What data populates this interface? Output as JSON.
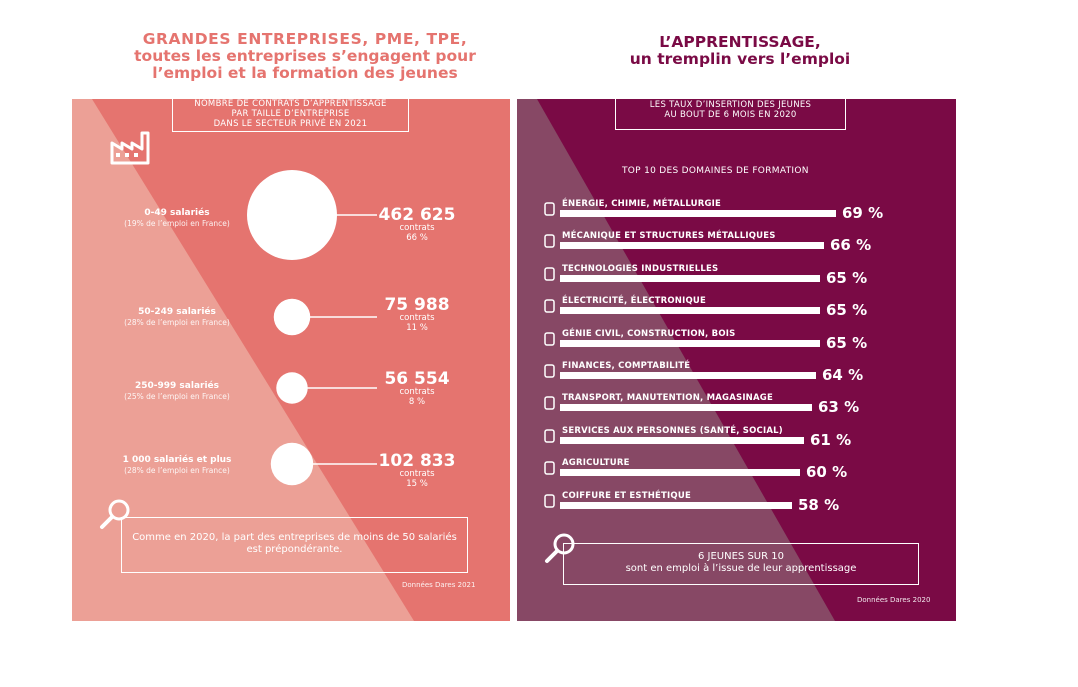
{
  "left": {
    "title_lines": [
      "GRANDES ENTREPRISES, PME, TPE,",
      "toutes les entreprises s’engagent pour",
      "l’emploi et la formation des jeunes"
    ],
    "header_lines": [
      "NOMBRE DE CONTRATS D’APPRENTISSAGE",
      "PAR TAILLE D’ENTREPRISE",
      "DANS LE SECTEUR PRIVÉ EN 2021"
    ],
    "note_lines": [
      "Comme en 2020, la part des entreprises de moins de 50 salariés",
      "est prépondérante."
    ],
    "source": "Données Dares 2021",
    "unit_label": "contrats",
    "rows": [
      {
        "category": "0-49 salariés",
        "employment_share": "(19% de l’emploi en France)",
        "value": "462 625",
        "share": "66 %"
      },
      {
        "category": "50-249 salariés",
        "employment_share": "(28% de l’emploi en France)",
        "value": "75 988",
        "share": "11 %"
      },
      {
        "category": "250-999 salariés",
        "employment_share": "(25% de l’emploi en France)",
        "value": "56 554",
        "share": "8 %"
      },
      {
        "category": "1 000 salariés et plus",
        "employment_share": "(28% de l’emploi en France)",
        "value": "102 833",
        "share": "15 %"
      }
    ]
  },
  "right": {
    "title_lines": [
      "L’APPRENTISSAGE,",
      "un tremplin vers l’emploi"
    ],
    "header_lines": [
      "LES TAUX D’INSERTION DES JEUNES",
      "AU BOUT DE 6 MOIS EN 2020"
    ],
    "subheader": "TOP 10 DES DOMAINES DE FORMATION",
    "note_lines": [
      "6 JEUNES SUR 10",
      "sont en emploi à l’issue de leur apprentissage"
    ],
    "source": "Données Dares 2020",
    "value_labels": [
      "69 %",
      "66 %",
      "65 %",
      "65 %",
      "65 %",
      "64 %",
      "63 %",
      "61 %",
      "60 %",
      "58 %"
    ],
    "icons": [
      "battery-icon",
      "wrench-icon",
      "factory-icon",
      "plug-icon",
      "hard-hat-icon",
      "money-icon",
      "box-icon",
      "hands-icon",
      "wheat-icon",
      "hairdryer-icon"
    ]
  },
  "colors": {
    "left_panel": "#e5746f",
    "left_panel_light": "#eca096",
    "right_panel": "#7a0a45",
    "right_panel_light": "#874865",
    "left_title": "#e5746f",
    "right_title": "#7a0a45"
  },
  "chart_data": [
    {
      "type": "bubble",
      "title": "NOMBRE DE CONTRATS D’APPRENTISSAGE PAR TAILLE D’ENTREPRISE DANS LE SECTEUR PRIVÉ EN 2021",
      "categories": [
        "0-49 salariés",
        "50-249 salariés",
        "250-999 salariés",
        "1 000 salariés et plus"
      ],
      "values": [
        462625,
        75988,
        56554,
        102833
      ],
      "shares_percent": [
        66,
        11,
        8,
        15
      ],
      "employment_share_percent": [
        19,
        28,
        25,
        28
      ]
    },
    {
      "type": "bar",
      "orientation": "horizontal",
      "title": "TOP 10 DES DOMAINES DE FORMATION",
      "categories": [
        "ÉNERGIE, CHIMIE, MÉTALLURGIE",
        "MÉCANIQUE ET STRUCTURES MÉTALLIQUES",
        "TECHNOLOGIES INDUSTRIELLES",
        "ÉLECTRICITÉ, ÉLECTRONIQUE",
        "GÉNIE CIVIL, CONSTRUCTION, BOIS",
        "FINANCES, COMPTABILITÉ",
        "TRANSPORT, MANUTENTION, MAGASINAGE",
        "SERVICES AUX PERSONNES (SANTÉ, SOCIAL)",
        "AGRICULTURE",
        "COIFFURE ET ESTHÉTIQUE"
      ],
      "values": [
        69,
        66,
        65,
        65,
        65,
        64,
        63,
        61,
        60,
        58
      ],
      "unit": "%"
    }
  ]
}
